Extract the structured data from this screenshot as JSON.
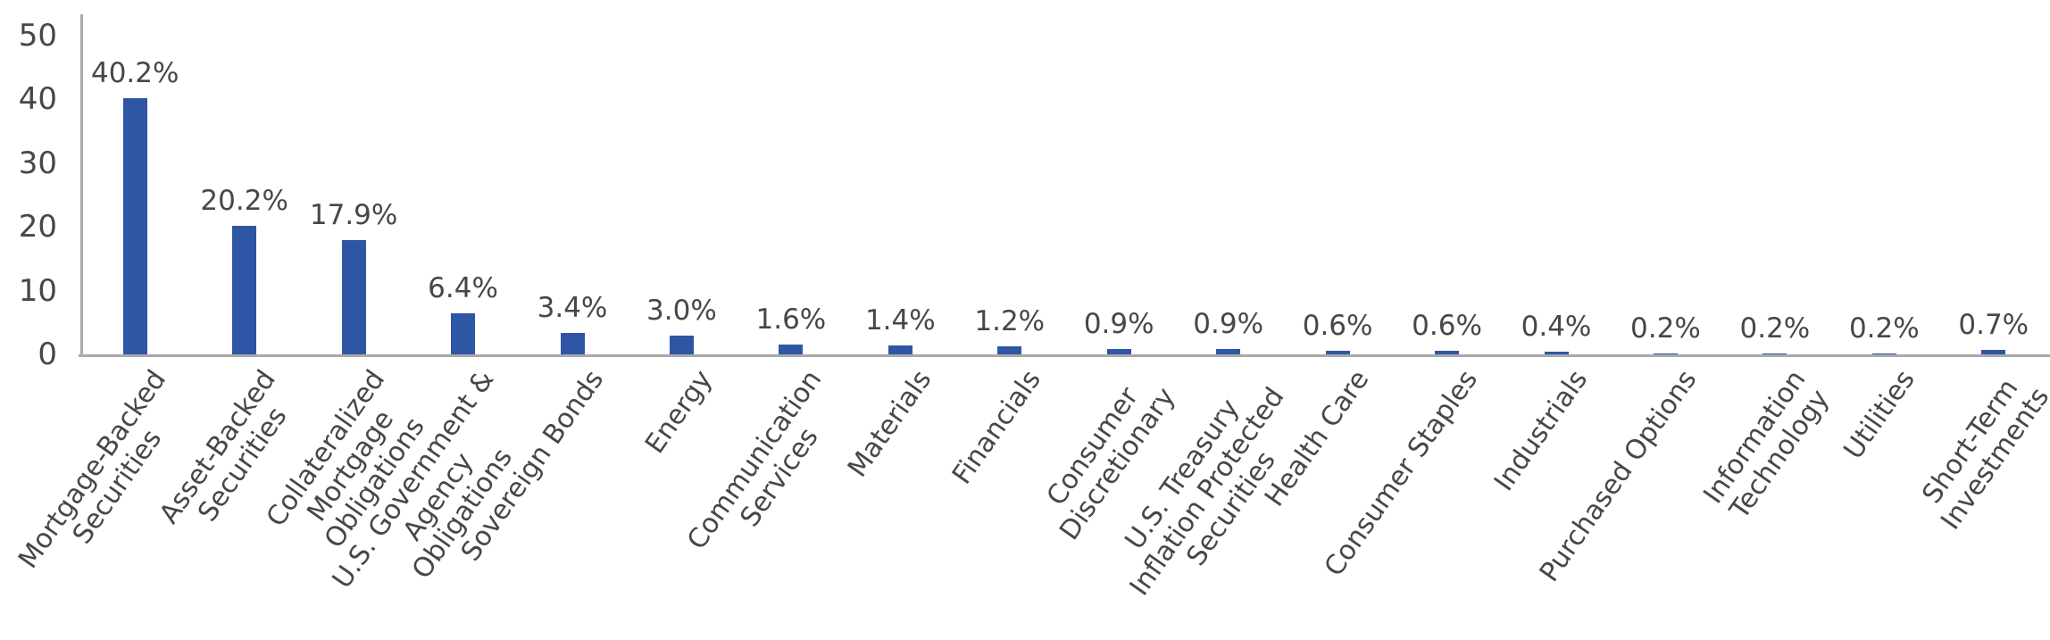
{
  "chart_data": {
    "type": "bar",
    "title": "",
    "xlabel": "",
    "ylabel": "",
    "ylim": [
      0,
      50
    ],
    "y_ticks": [
      0,
      10,
      20,
      30,
      40,
      50
    ],
    "grid": "off",
    "legend": "none",
    "bar_color": "#2F56A4",
    "axis_color": "#A9A9A9",
    "text_color": "#474747",
    "categories": [
      "Mortgage-Backed Securities",
      "Asset-Backed Securities",
      "Collateralized Mortgage Obligations",
      "U.S. Government & Agency Obligations",
      "Sovereign Bonds",
      "Energy",
      "Communication Services",
      "Materials",
      "Financials",
      "Consumer Discretionary",
      "U.S. Treasury Inflation Protected Securities",
      "Health Care",
      "Consumer Staples",
      "Industrials",
      "Purchased Options",
      "Information Technology",
      "Utilities",
      "Short-Term Investments"
    ],
    "category_display_lines": [
      [
        "Mortgage-Backed",
        "Securities"
      ],
      [
        "Asset-Backed",
        "Securities"
      ],
      [
        "Collateralized",
        "Mortgage",
        "Obligations"
      ],
      [
        "U.S. Government &",
        "Agency",
        "Obligations"
      ],
      [
        "Sovereign Bonds"
      ],
      [
        "Energy"
      ],
      [
        "Communication",
        "Services"
      ],
      [
        "Materials"
      ],
      [
        "Financials"
      ],
      [
        "Consumer",
        "Discretionary"
      ],
      [
        "U.S. Treasury",
        "Inflation Protected",
        "Securities"
      ],
      [
        "Health Care"
      ],
      [
        "Consumer Staples"
      ],
      [
        "Industrials"
      ],
      [
        "Purchased Options"
      ],
      [
        "Information",
        "Technology"
      ],
      [
        "Utilities"
      ],
      [
        "Short-Term",
        "Investments"
      ]
    ],
    "values": [
      40.2,
      20.2,
      17.9,
      6.4,
      3.4,
      3.0,
      1.6,
      1.4,
      1.2,
      0.9,
      0.9,
      0.6,
      0.6,
      0.4,
      0.2,
      0.2,
      0.2,
      0.7
    ],
    "data_labels": [
      "40.2%",
      "20.2%",
      "17.9%",
      "6.4%",
      "3.4%",
      "3.0%",
      "1.6%",
      "1.4%",
      "1.2%",
      "0.9%",
      "0.9%",
      "0.6%",
      "0.6%",
      "0.4%",
      "0.2%",
      "0.2%",
      "0.2%",
      "0.7%"
    ]
  }
}
